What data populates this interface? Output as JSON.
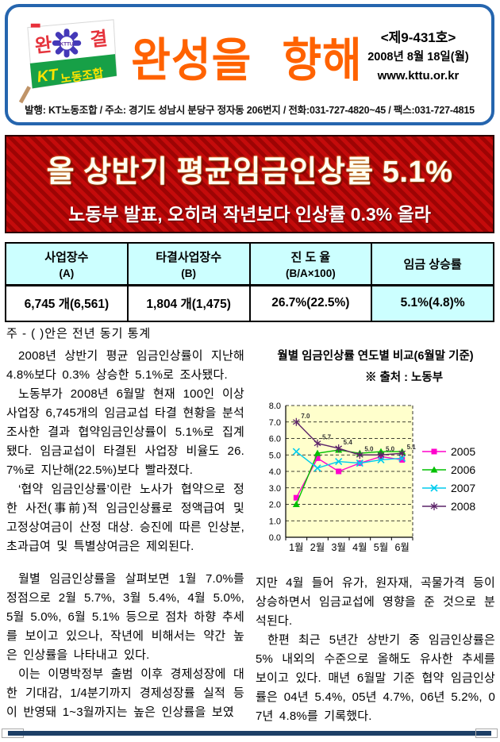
{
  "header": {
    "title": "완성을 향해",
    "issue_no": "<제9-431호>",
    "date": "2008년 8월 18일(월)",
    "website": "www.kttu.or.kr",
    "publisher_line": "발행: KT노동조합 / 주소: 경기도 성남시 분당구 정자동 206번지 / 전화:031-727-4820~45 / 팩스:031-727-4815",
    "flag": {
      "char_left": "완",
      "char_right": "결",
      "emblem_text": "KTTU",
      "band_kt": "KT",
      "band_label": "노동조합"
    }
  },
  "banner": {
    "headline": "올 상반기 평균임금인상률 5.1%",
    "subheadline": "노동부 발표, 오히려 작년보다 인상률 0.3% 올라"
  },
  "table": {
    "columns": [
      {
        "title": "사업장수",
        "sub": "(A)"
      },
      {
        "title": "타결사업장수",
        "sub": "(B)"
      },
      {
        "title": "진 도 율",
        "sub": "(B/A×100)"
      },
      {
        "title": "임금 상승률",
        "sub": ""
      }
    ],
    "values": [
      "6,745 개(6,561)",
      "1,804 개(1,475)",
      "26.7%(22.5%)",
      "5.1%(4.8)%"
    ],
    "note": "주 - ( )안은 전년 동기 통계"
  },
  "article": {
    "p1": "2008년 상반기 평균 임금인상률이 지난해 4.8%보다 0.3% 상승한 5.1%로 조사됐다.",
    "p2": "노동부가 2008년 6월말 현재 100인 이상 사업장 6,745개의 임금교섭 타결 현황을 분석 조사한 결과 협약임금인상률이 5.1%로 집계됐다. 임금교섭이 타결된 사업장 비율도 26.7%로 지난해(22.5%)보다 빨라졌다.",
    "p3": "‘협약 임금인상률’이란 노사가 협약으로 정한 사전(事前)적 임금인상률로 정액급여 및 고정상여금이 산정 대상. 승진에 따른 인상분, 초과급여 및 특별상여금은 제외된다.",
    "p4": "월별 임금인상률을 살펴보면 1월 7.0%를 정점으로 2월 5.7%, 3월 5.4%, 4월 5.0%, 5월 5.0%, 6월 5.1% 등으로 점차 하향 추세를 보이고 있으나, 작년에 비해서는 약간 높은 인상률을 나타내고 있다.",
    "p5": "이는 이명박정부 출범 이후 경제성장에 대한 기대감, 1/4분기까지 경제성장률 실적 등이 반영돼 1~3월까지는 높은 인상률을 보였",
    "p6": "지만 4월 들어 유가, 원자재, 곡물가격 등이 상승하면서 임금교섭에 영향을 준 것으로 분석된다.",
    "p7": "한편 최근 5년간 상반기 중 임금인상률은 5% 내외의 수준으로 올해도 유사한 추세를 보이고 있다. 매년 6월말 기준 협약 임금인상률은 04년 5.4%, 05년 4.7%, 06년 5.2%, 07년 4.8%를 기록했다."
  },
  "chart_data": {
    "type": "line",
    "title": "월별 임금인상률 연도별 비교(6월말 기준)",
    "source_note": "※ 출처 : 노동부",
    "categories": [
      "1월",
      "2월",
      "3월",
      "4월",
      "5월",
      "6월"
    ],
    "series": [
      {
        "name": "2005",
        "color": "#ff00cc",
        "marker": "square",
        "values": [
          2.4,
          4.8,
          4.0,
          4.5,
          4.9,
          4.7
        ]
      },
      {
        "name": "2006",
        "color": "#00c000",
        "marker": "triangle",
        "values": [
          2.0,
          5.1,
          5.3,
          5.1,
          5.2,
          5.2
        ]
      },
      {
        "name": "2007",
        "color": "#00ccee",
        "marker": "x",
        "values": [
          5.2,
          4.2,
          4.6,
          4.5,
          4.7,
          4.8
        ]
      },
      {
        "name": "2008",
        "color": "#5c2369",
        "marker": "asterisk",
        "values": [
          7.0,
          5.7,
          5.4,
          5.0,
          5.0,
          5.1
        ],
        "point_labels": [
          "7.0",
          "5.7",
          "5.4",
          "5.0",
          "5.0",
          "5.1"
        ]
      }
    ],
    "ylim": [
      0.0,
      8.0
    ],
    "ytick_step": 1.0,
    "xlabel": "",
    "ylabel": "",
    "plot_bg": "#ffffcc",
    "grid": "dashed-horizontal",
    "legend_position": "right"
  },
  "colors": {
    "masthead_border": "#2565ae",
    "title_orange": "#ff6200",
    "banner_red": "#c40b0b",
    "banner_stripe": "#9d0404",
    "table_header_bg": "#ccffff",
    "chart_plot_bg": "#ffffcc",
    "footer_bar": "#1d3f66"
  }
}
